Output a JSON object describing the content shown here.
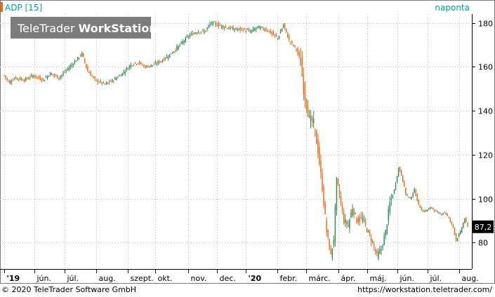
{
  "header": {
    "symbol_label": "ADP [15]",
    "period_label": "naponta",
    "watermark_light": "TeleTrader ",
    "watermark_bold": "WorkStation"
  },
  "footer": {
    "copyright": "© 2020 TeleTrader Software GmbH",
    "url": "https://workstation.teletrader.com/"
  },
  "colors": {
    "up": "#2e8b57",
    "down": "#ee6a11",
    "accent": "#00a0a0",
    "last_price_bg": "#000000",
    "grid": "#bdbdbd"
  },
  "chart_data": {
    "type": "candlestick",
    "title": "ADP [15]",
    "interval": "naponta",
    "ylim": [
      68,
      184
    ],
    "yticks": [
      80,
      100,
      120,
      140,
      160,
      180
    ],
    "last_price": 87.2,
    "last_price_label": "87,2",
    "x_labels": [
      {
        "label": "'19",
        "i": 0
      },
      {
        "label": "jún.",
        "i": 21
      },
      {
        "label": "júl.",
        "i": 42
      },
      {
        "label": "aug.",
        "i": 64
      },
      {
        "label": "szept.",
        "i": 86
      },
      {
        "label": "okt.",
        "i": 105
      },
      {
        "label": "nov.",
        "i": 128
      },
      {
        "label": "dec.",
        "i": 148
      },
      {
        "label": "'20",
        "i": 168
      },
      {
        "label": "febr.",
        "i": 190
      },
      {
        "label": "márc.",
        "i": 210
      },
      {
        "label": "ápr.",
        "i": 232
      },
      {
        "label": "máj.",
        "i": 252
      },
      {
        "label": "jún.",
        "i": 273
      },
      {
        "label": "júl.",
        "i": 294
      },
      {
        "label": "aug.",
        "i": 316
      }
    ],
    "close_path": [
      {
        "i": 0,
        "v": 156
      },
      {
        "i": 3,
        "v": 153
      },
      {
        "i": 8,
        "v": 155
      },
      {
        "i": 14,
        "v": 154
      },
      {
        "i": 20,
        "v": 156
      },
      {
        "i": 27,
        "v": 154
      },
      {
        "i": 32,
        "v": 157
      },
      {
        "i": 38,
        "v": 155
      },
      {
        "i": 44,
        "v": 159
      },
      {
        "i": 50,
        "v": 163
      },
      {
        "i": 54,
        "v": 166
      },
      {
        "i": 58,
        "v": 158
      },
      {
        "i": 63,
        "v": 154
      },
      {
        "i": 70,
        "v": 152
      },
      {
        "i": 76,
        "v": 154
      },
      {
        "i": 82,
        "v": 157
      },
      {
        "i": 88,
        "v": 161
      },
      {
        "i": 93,
        "v": 162
      },
      {
        "i": 98,
        "v": 160
      },
      {
        "i": 104,
        "v": 161
      },
      {
        "i": 110,
        "v": 163
      },
      {
        "i": 116,
        "v": 166
      },
      {
        "i": 122,
        "v": 170
      },
      {
        "i": 128,
        "v": 174
      },
      {
        "i": 134,
        "v": 176
      },
      {
        "i": 139,
        "v": 176
      },
      {
        "i": 144,
        "v": 180
      },
      {
        "i": 149,
        "v": 179
      },
      {
        "i": 154,
        "v": 178
      },
      {
        "i": 160,
        "v": 177
      },
      {
        "i": 166,
        "v": 177
      },
      {
        "i": 171,
        "v": 176
      },
      {
        "i": 176,
        "v": 178
      },
      {
        "i": 182,
        "v": 177
      },
      {
        "i": 186,
        "v": 175
      },
      {
        "i": 190,
        "v": 173
      },
      {
        "i": 194,
        "v": 179
      },
      {
        "i": 198,
        "v": 172
      },
      {
        "i": 203,
        "v": 168
      },
      {
        "i": 206,
        "v": 162
      },
      {
        "i": 208,
        "v": 150
      },
      {
        "i": 210,
        "v": 143
      },
      {
        "i": 212,
        "v": 136
      },
      {
        "i": 215,
        "v": 134
      },
      {
        "i": 218,
        "v": 122
      },
      {
        "i": 221,
        "v": 105
      },
      {
        "i": 224,
        "v": 85
      },
      {
        "i": 227,
        "v": 74
      },
      {
        "i": 229,
        "v": 82
      },
      {
        "i": 231,
        "v": 108
      },
      {
        "i": 233,
        "v": 102
      },
      {
        "i": 236,
        "v": 90
      },
      {
        "i": 239,
        "v": 88
      },
      {
        "i": 242,
        "v": 96
      },
      {
        "i": 245,
        "v": 90
      },
      {
        "i": 249,
        "v": 91
      },
      {
        "i": 252,
        "v": 86
      },
      {
        "i": 256,
        "v": 80
      },
      {
        "i": 259,
        "v": 74
      },
      {
        "i": 262,
        "v": 77
      },
      {
        "i": 265,
        "v": 85
      },
      {
        "i": 268,
        "v": 98
      },
      {
        "i": 271,
        "v": 104
      },
      {
        "i": 274,
        "v": 114
      },
      {
        "i": 276,
        "v": 111
      },
      {
        "i": 279,
        "v": 102
      },
      {
        "i": 282,
        "v": 100
      },
      {
        "i": 285,
        "v": 104
      },
      {
        "i": 288,
        "v": 97
      },
      {
        "i": 291,
        "v": 94
      },
      {
        "i": 294,
        "v": 95
      },
      {
        "i": 297,
        "v": 96
      },
      {
        "i": 300,
        "v": 94
      },
      {
        "i": 303,
        "v": 93
      },
      {
        "i": 306,
        "v": 94
      },
      {
        "i": 309,
        "v": 91
      },
      {
        "i": 312,
        "v": 87
      },
      {
        "i": 314,
        "v": 81
      },
      {
        "i": 317,
        "v": 85
      },
      {
        "i": 320,
        "v": 91
      },
      {
        "i": 322,
        "v": 87.2
      }
    ]
  }
}
